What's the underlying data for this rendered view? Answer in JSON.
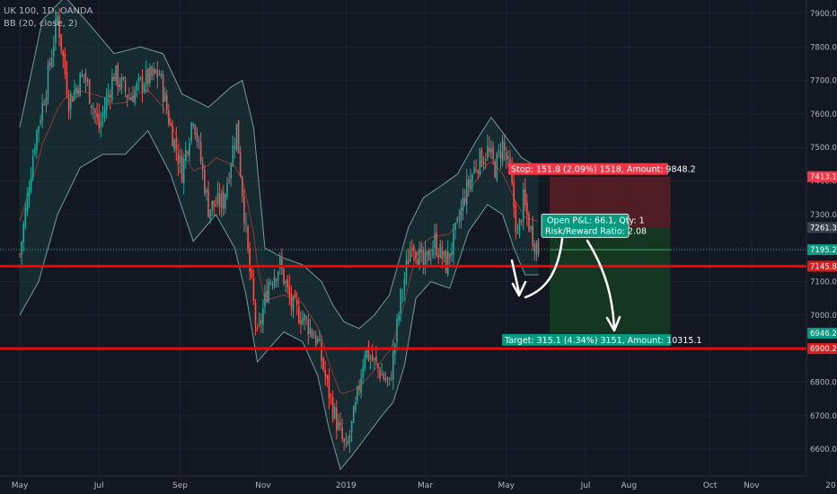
{
  "header": {
    "symbol_line": "UK 100, 1D, OANDA",
    "indicator_line": "BB (20, close, 2)"
  },
  "colors": {
    "background": "#131722",
    "grid": "#1f2330",
    "candle_up": "#26a69a",
    "candle_down": "#ef5350",
    "band": "#6f9c98",
    "band_fill": "#1b3a3c",
    "basis": "#8a3a3a",
    "support_line": "#ff0000",
    "stop_zone": "#5c1e24",
    "target_zone": "#163b22",
    "stop_label": "#f23645",
    "target_label": "#089981",
    "axis_text": "#b2b5be",
    "arrow": "#ffffff"
  },
  "chart_data": {
    "type": "candlestick",
    "instrument": "UK 100",
    "timeframe": "1D",
    "source": "OANDA",
    "indicator": "BB (20, close, 2)",
    "y_range": [
      6520,
      7940
    ],
    "y_ticks": [
      6600,
      6700,
      6800,
      6900,
      7000,
      7100,
      7200,
      7300,
      7400,
      7500,
      7600,
      7700,
      7800,
      7900
    ],
    "y_tick_labels": [
      "6600.0",
      "6700.0",
      "6800.0",
      "6900.0",
      "7000.0",
      "7100.0",
      "7200.0",
      "7300.0",
      "7400.0",
      "7500.0",
      "7600.0",
      "7700.0",
      "7800.0",
      "7900.0"
    ],
    "x_labels": [
      "May",
      "Jul",
      "Sep",
      "Nov",
      "2019",
      "Mar",
      "May",
      "Jul",
      "Aug",
      "Oct",
      "Nov",
      "20"
    ],
    "x_label_bar_index": [
      0,
      42,
      85,
      129,
      173,
      215,
      258,
      300,
      323,
      366,
      388,
      430
    ],
    "bars_total_span": 440,
    "close_path": [
      [
        0,
        7180
      ],
      [
        8,
        7520
      ],
      [
        14,
        7680
      ],
      [
        20,
        7890
      ],
      [
        26,
        7640
      ],
      [
        34,
        7720
      ],
      [
        42,
        7560
      ],
      [
        50,
        7720
      ],
      [
        58,
        7650
      ],
      [
        66,
        7700
      ],
      [
        74,
        7720
      ],
      [
        80,
        7560
      ],
      [
        86,
        7430
      ],
      [
        92,
        7600
      ],
      [
        100,
        7320
      ],
      [
        108,
        7340
      ],
      [
        115,
        7560
      ],
      [
        121,
        7180
      ],
      [
        126,
        6930
      ],
      [
        132,
        7100
      ],
      [
        138,
        7150
      ],
      [
        144,
        7030
      ],
      [
        152,
        6980
      ],
      [
        158,
        6920
      ],
      [
        163,
        6790
      ],
      [
        168,
        6680
      ],
      [
        173,
        6590
      ],
      [
        178,
        6720
      ],
      [
        183,
        6900
      ],
      [
        190,
        6840
      ],
      [
        196,
        6790
      ],
      [
        202,
        7050
      ],
      [
        208,
        7230
      ],
      [
        214,
        7140
      ],
      [
        220,
        7220
      ],
      [
        226,
        7150
      ],
      [
        232,
        7260
      ],
      [
        236,
        7360
      ],
      [
        242,
        7450
      ],
      [
        248,
        7490
      ],
      [
        252,
        7440
      ],
      [
        256,
        7510
      ],
      [
        260,
        7420
      ],
      [
        264,
        7230
      ],
      [
        267,
        7340
      ],
      [
        271,
        7250
      ],
      [
        275,
        7195
      ]
    ],
    "bollinger_upper": [
      [
        0,
        7560
      ],
      [
        12,
        7880
      ],
      [
        24,
        7950
      ],
      [
        38,
        7860
      ],
      [
        50,
        7780
      ],
      [
        64,
        7800
      ],
      [
        76,
        7780
      ],
      [
        86,
        7660
      ],
      [
        100,
        7620
      ],
      [
        112,
        7680
      ],
      [
        118,
        7700
      ],
      [
        124,
        7560
      ],
      [
        130,
        7200
      ],
      [
        140,
        7170
      ],
      [
        150,
        7150
      ],
      [
        160,
        7100
      ],
      [
        166,
        7030
      ],
      [
        172,
        6980
      ],
      [
        180,
        6960
      ],
      [
        188,
        7000
      ],
      [
        196,
        7060
      ],
      [
        206,
        7260
      ],
      [
        214,
        7350
      ],
      [
        222,
        7380
      ],
      [
        232,
        7420
      ],
      [
        242,
        7520
      ],
      [
        250,
        7590
      ],
      [
        258,
        7530
      ],
      [
        266,
        7470
      ],
      [
        275,
        7440
      ]
    ],
    "bollinger_lower": [
      [
        0,
        7000
      ],
      [
        10,
        7100
      ],
      [
        20,
        7300
      ],
      [
        32,
        7440
      ],
      [
        44,
        7480
      ],
      [
        56,
        7480
      ],
      [
        68,
        7550
      ],
      [
        80,
        7420
      ],
      [
        92,
        7220
      ],
      [
        104,
        7300
      ],
      [
        114,
        7200
      ],
      [
        120,
        7060
      ],
      [
        126,
        6860
      ],
      [
        132,
        6900
      ],
      [
        140,
        6950
      ],
      [
        150,
        6920
      ],
      [
        158,
        6820
      ],
      [
        164,
        6660
      ],
      [
        170,
        6540
      ],
      [
        176,
        6580
      ],
      [
        184,
        6640
      ],
      [
        192,
        6700
      ],
      [
        198,
        6740
      ],
      [
        204,
        6850
      ],
      [
        210,
        7050
      ],
      [
        218,
        7100
      ],
      [
        228,
        7080
      ],
      [
        238,
        7250
      ],
      [
        248,
        7330
      ],
      [
        256,
        7300
      ],
      [
        262,
        7200
      ],
      [
        268,
        7120
      ],
      [
        275,
        7120
      ]
    ],
    "horizontal_levels": [
      7145.8,
      6900.2
    ],
    "position_tool": {
      "entry": 7261.3,
      "stop": 7413.1,
      "target": 6946.2,
      "start_bar": 281,
      "end_bar": 345,
      "stop_label": "Stop: 151.8 (2.09%) 1518, Amount: 9848.2",
      "target_label": "Target: 315.1 (4.34%) 3151, Amount: 10315.1",
      "pnl_line": "Open P&L: 66.1, Qty: 1",
      "ratio_line": "Risk/Reward Ratio: 2.08"
    },
    "price_tags": [
      {
        "value": 7413.1,
        "label": "7413.1",
        "kind": "stop"
      },
      {
        "value": 7261.3,
        "label": "7261.3",
        "kind": "entry"
      },
      {
        "value": 7195.2,
        "label": "7195.2",
        "kind": "last"
      },
      {
        "value": 7145.8,
        "label": "7145.8",
        "kind": "level"
      },
      {
        "value": 6946.2,
        "label": "6946.2",
        "kind": "target"
      },
      {
        "value": 6900.2,
        "label": "6900.2",
        "kind": "level"
      }
    ],
    "last_price": 7195.2
  }
}
